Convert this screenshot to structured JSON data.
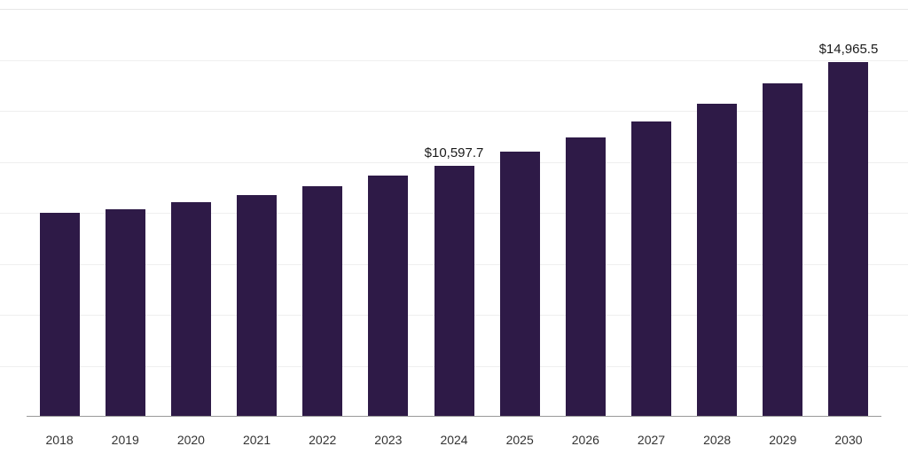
{
  "chart_data": {
    "type": "bar",
    "title": "",
    "xlabel": "",
    "ylabel": "",
    "categories": [
      "2018",
      "2019",
      "2020",
      "2021",
      "2022",
      "2023",
      "2024",
      "2025",
      "2026",
      "2027",
      "2028",
      "2029",
      "2030"
    ],
    "values": [
      8600,
      8750,
      9050,
      9350,
      9730,
      10170,
      10597.7,
      11190,
      11790,
      12460,
      13210,
      14070,
      14965.5
    ],
    "data_labels": {
      "2024": "$10,597.7",
      "2030": "$14,965.5"
    },
    "ylim": [
      0,
      17200
    ],
    "grid": "horizontal",
    "grid_divisions": 8,
    "legend": "none",
    "colors": {
      "bar": "#2E1A47",
      "grid": "#efefef",
      "grid_top": "#e6e6e6",
      "axis": "#999999",
      "data_label": "#1a1a1a",
      "tick_label": "#333333"
    }
  }
}
